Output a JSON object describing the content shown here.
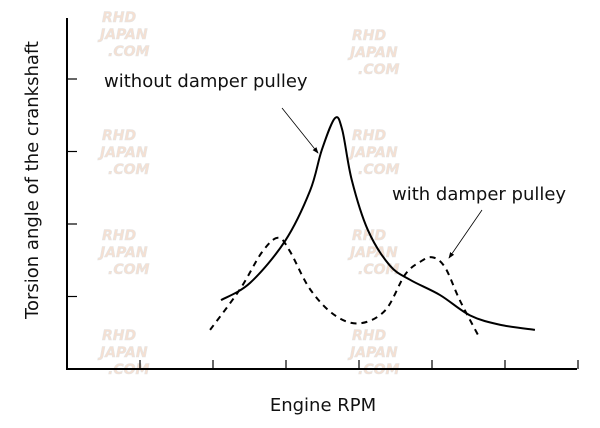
{
  "chart_data": {
    "type": "line",
    "title": "",
    "xlabel": "Engine RPM",
    "ylabel": "Torsion angle of the crankshaft",
    "xlim": [
      0,
      7
    ],
    "ylim": [
      0,
      4.85
    ],
    "x_ticks": [
      1,
      2,
      3,
      4,
      5,
      6,
      7
    ],
    "y_ticks": [
      1,
      2,
      3,
      4
    ],
    "tick_labels_shown": false,
    "grid": false,
    "legend": "none (inline annotations with arrows)",
    "series": [
      {
        "name": "without damper pulley",
        "style": "solid",
        "color": "#000000",
        "points": [
          [
            2.11,
            0.95
          ],
          [
            2.51,
            1.19
          ],
          [
            2.99,
            1.77
          ],
          [
            3.33,
            2.46
          ],
          [
            3.49,
            3.02
          ],
          [
            3.67,
            3.46
          ],
          [
            3.77,
            3.3
          ],
          [
            3.9,
            2.61
          ],
          [
            4.12,
            1.92
          ],
          [
            4.42,
            1.43
          ],
          [
            4.7,
            1.23
          ],
          [
            5.11,
            1.02
          ],
          [
            5.52,
            0.74
          ],
          [
            5.93,
            0.61
          ],
          [
            6.41,
            0.54
          ]
        ]
      },
      {
        "name": "with damper pulley",
        "style": "dashed",
        "color": "#000000",
        "points": [
          [
            1.96,
            0.54
          ],
          [
            2.37,
            1.1
          ],
          [
            2.67,
            1.61
          ],
          [
            2.89,
            1.81
          ],
          [
            3.05,
            1.63
          ],
          [
            3.33,
            1.1
          ],
          [
            3.67,
            0.74
          ],
          [
            4.01,
            0.63
          ],
          [
            4.36,
            0.81
          ],
          [
            4.63,
            1.3
          ],
          [
            4.84,
            1.48
          ],
          [
            5.01,
            1.54
          ],
          [
            5.18,
            1.4
          ],
          [
            5.38,
            0.95
          ],
          [
            5.63,
            0.47
          ]
        ]
      }
    ],
    "annotations": [
      {
        "text": "without damper pulley",
        "series": 0
      },
      {
        "text": "with damper pulley",
        "series": 1
      }
    ],
    "watermark": "RHD JAPAN .COM"
  }
}
